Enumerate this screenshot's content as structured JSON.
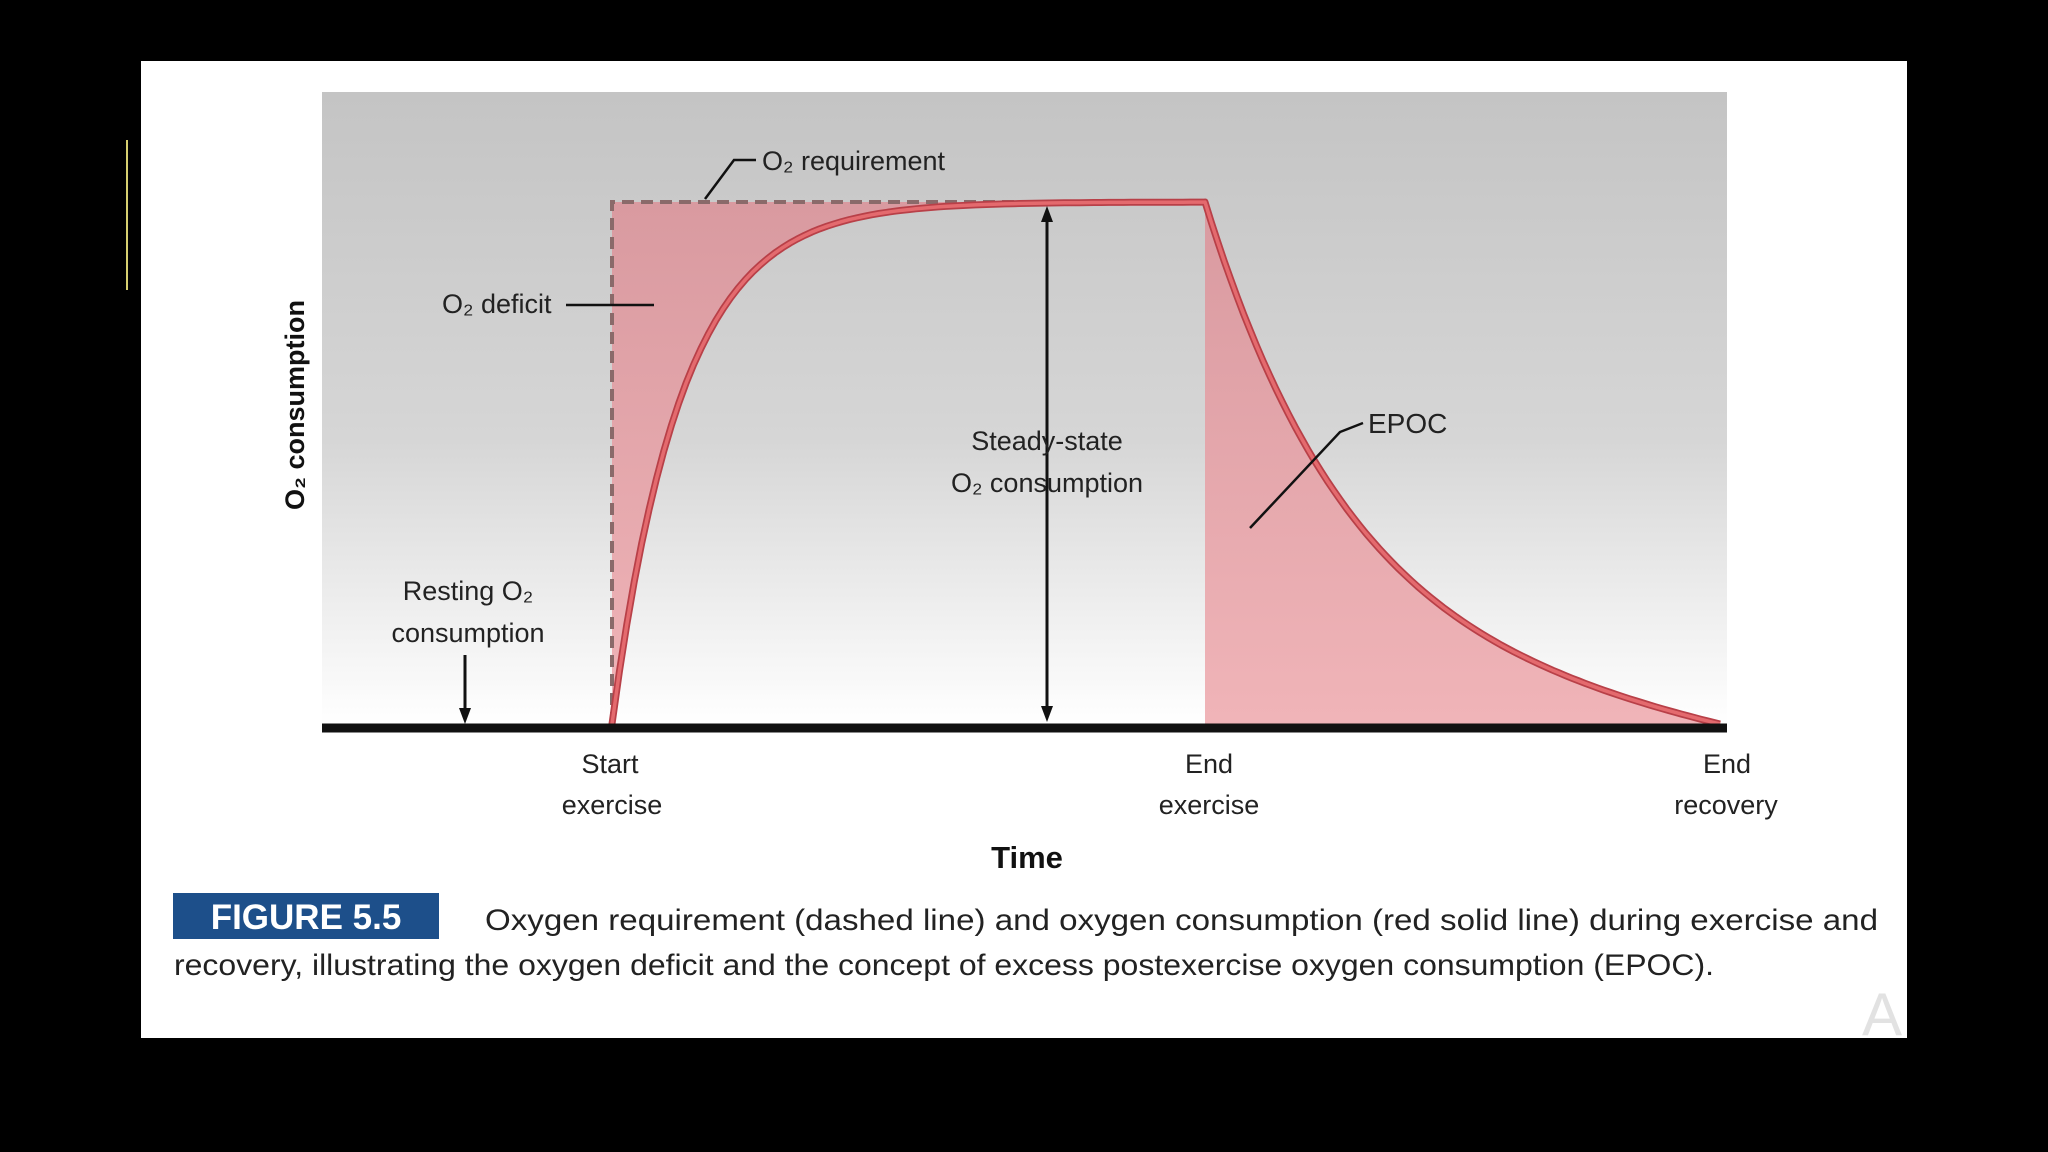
{
  "chart_data": {
    "type": "line",
    "ylabel": "O₂ consumption",
    "xlabel": "Time",
    "x_tick_labels": [
      {
        "line1": "Start",
        "line2": "exercise"
      },
      {
        "line1": "End",
        "line2": "exercise"
      },
      {
        "line1": "End",
        "line2": "recovery"
      }
    ],
    "series": [
      {
        "name": "O₂ requirement",
        "style": "dashed",
        "color": "#8a6a6a"
      },
      {
        "name": "O₂ consumption",
        "style": "solid",
        "color": "#d9565a"
      }
    ],
    "annotations": {
      "requirement": "O₂ requirement",
      "deficit": "O₂ deficit",
      "steady_line1": "Steady-state",
      "steady_line2": "O₂ consumption",
      "epoc": "EPOC",
      "resting_line1": "Resting O₂",
      "resting_line2": "consumption"
    },
    "colors": {
      "fill": "#e3a3a8",
      "curve": "#d9565a",
      "baseline": "#111111",
      "background_top": "#c4c4c4",
      "background_bottom": "#ffffff"
    }
  },
  "caption": {
    "badge": "FIGURE 5.5",
    "line1": "Oxygen requirement (dashed line) and oxygen consumption (red solid line) during exercise and",
    "line2": "recovery, illustrating the oxygen deficit and the concept of excess postexercise oxygen consumption (EPOC)."
  },
  "watermark": "A"
}
